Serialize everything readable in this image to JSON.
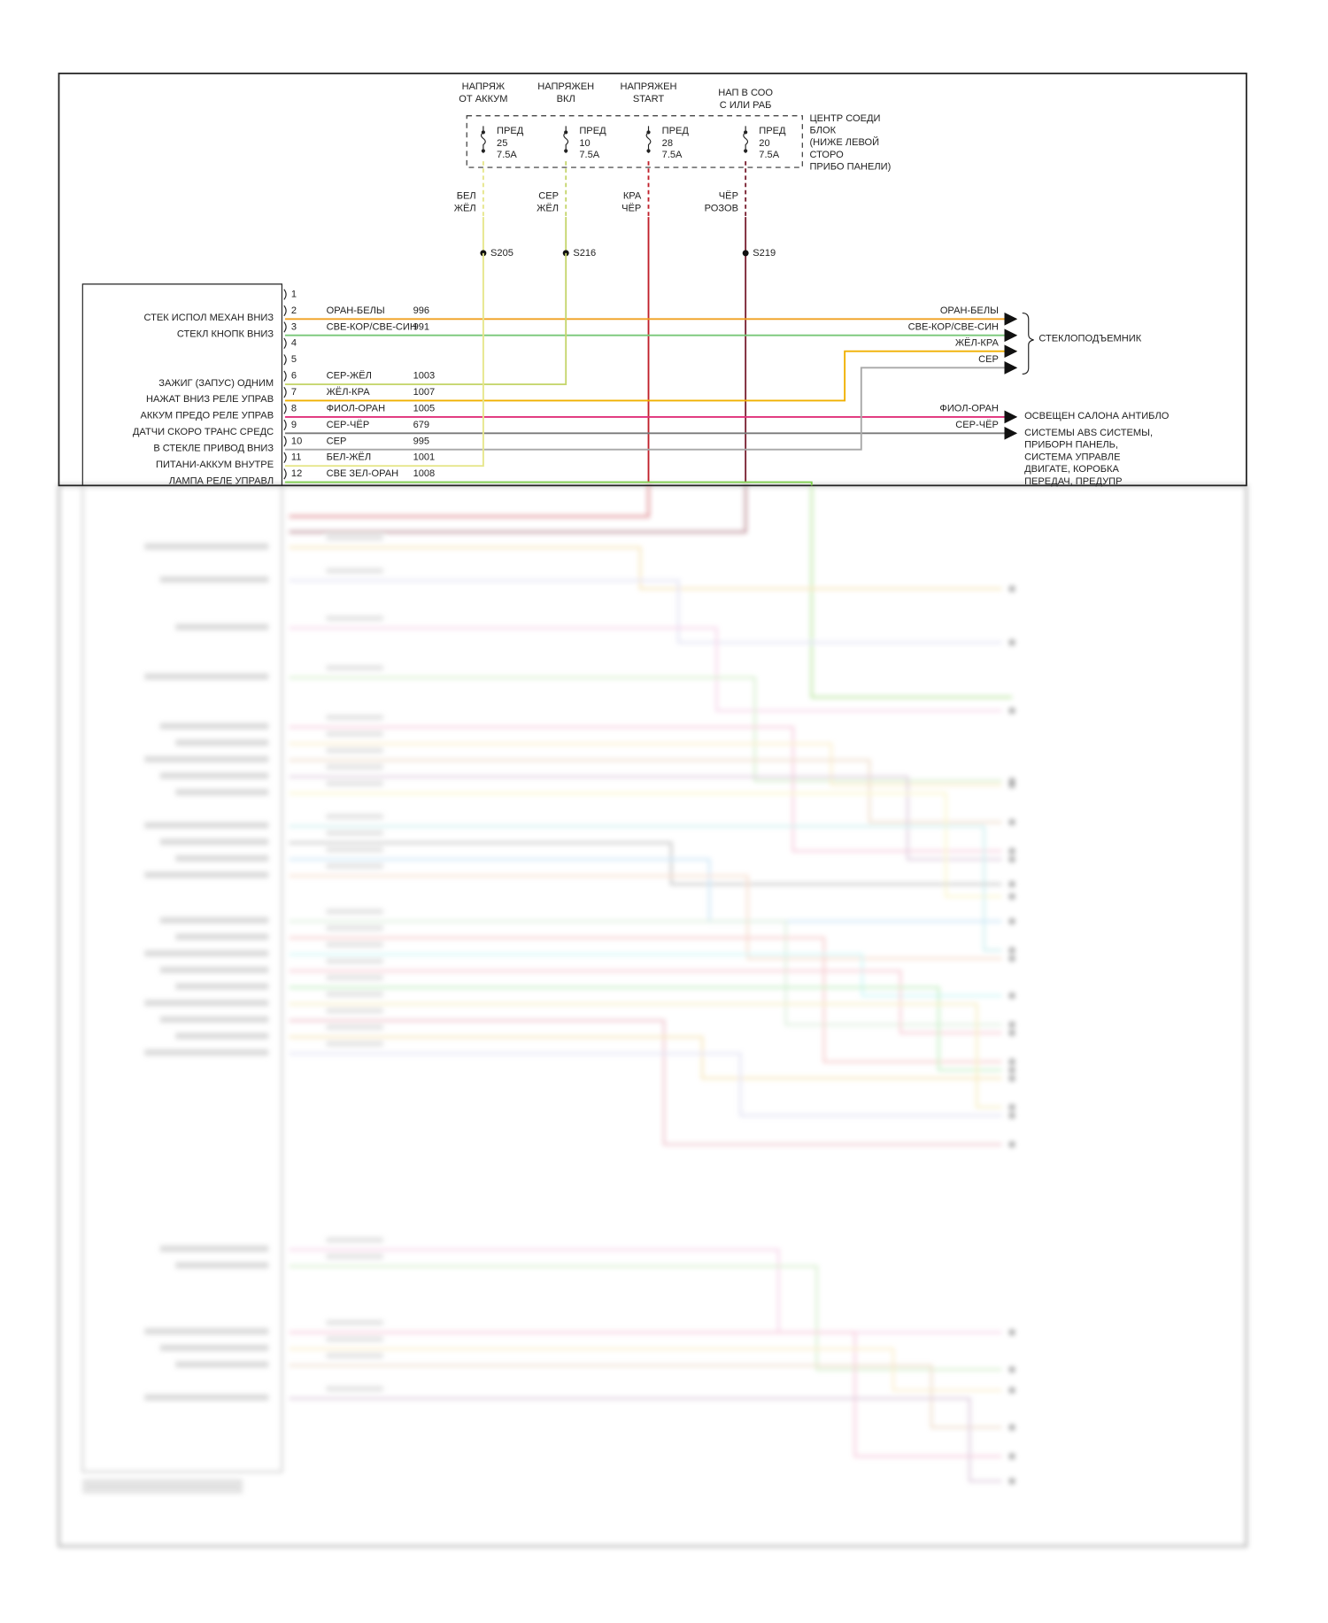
{
  "fuse_block": {
    "label": [
      "ЦЕНТР СОЕДИ",
      "БЛОК",
      "(НИЖЕ ЛЕВОЙ",
      "СТОРО",
      "ПРИБО ПАНЕЛИ)"
    ],
    "fuses": [
      {
        "source": [
          "НАПРЯЖ",
          "ОТ АККУМ"
        ],
        "name": "ПРЕД",
        "number": 25,
        "rating": "7.5A",
        "wire_color": [
          "БЕЛ",
          "ЖЁЛ"
        ],
        "splice": "S205",
        "color": "#e6e68a"
      },
      {
        "source": [
          "НАПРЯЖЕН",
          "ВКЛ"
        ],
        "name": "ПРЕД",
        "number": 10,
        "rating": "7.5A",
        "wire_color": [
          "СЕР",
          "ЖЁЛ"
        ],
        "splice": "S216",
        "color": "#c6d66e"
      },
      {
        "source": [
          "НАПРЯЖЕН",
          "START"
        ],
        "name": "ПРЕД",
        "number": 28,
        "rating": "7.5A",
        "wire_color": [
          "КРА",
          "ЧЁР"
        ],
        "color": "#c0202a"
      },
      {
        "source": [
          "НАП В СОО",
          "С ИЛИ РАБ"
        ],
        "name": "ПРЕД",
        "number": 20,
        "rating": "7.5A",
        "wire_color": [
          "ЧЁР",
          "РОЗОВ"
        ],
        "splice": "S219",
        "color": "#7a2232"
      }
    ]
  },
  "connector": {
    "pins": [
      {
        "pin": 1
      },
      {
        "pin": 2,
        "function": "СТЕК ИСПОЛ МЕХАН ВНИЗ",
        "wire": "ОРАН-БЕЛЫ",
        "circuit": 996,
        "color": "#f0a020",
        "dest_label": "ОРАН-БЕЛЫ"
      },
      {
        "pin": 3,
        "function": "СТЕКЛ КНОПК ВНИЗ",
        "wire": "СВЕ-КОР/СВЕ-СИН",
        "circuit": 991,
        "color": "#78c878",
        "dest_label": "СВЕ-КОР/СВЕ-СИН"
      },
      {
        "pin": 4
      },
      {
        "pin": 5
      },
      {
        "pin": 6,
        "function": "ЗАЖИГ (ЗАПУС) ОДНИМ",
        "wire": "СЕР-ЖЁЛ",
        "circuit": 1003,
        "color": "#c6d66e"
      },
      {
        "pin": 7,
        "function": "НАЖАТ ВНИЗ РЕЛЕ УПРАВ",
        "wire": "ЖЁЛ-КРА",
        "circuit": 1007,
        "color": "#f0b000",
        "dest_label": "ЖЁЛ-КРА"
      },
      {
        "pin": 8,
        "function": "АККУМ ПРЕДО РЕЛЕ УПРАВ",
        "wire": "ФИОЛ-ОРАН",
        "circuit": 1005,
        "color": "#e0307a",
        "dest_label": "ФИОЛ-ОРАН"
      },
      {
        "pin": 9,
        "function": "ДАТЧИ СКОРО ТРАНС СРЕДС",
        "wire": "СЕР-ЧЁР",
        "circuit": 679,
        "color": "#7a7a7a",
        "dest_label": "СЕР-ЧЁР"
      },
      {
        "pin": 10,
        "function": "В СТЕКЛЕ ПРИВОД ВНИЗ",
        "wire": "СЕР",
        "circuit": 995,
        "color": "#a8a8a8",
        "dest_label": "СЕР"
      },
      {
        "pin": 11,
        "function": "ПИТАНИ-АККУМ ВНУТРЕ",
        "wire": "БЕЛ-ЖЁЛ",
        "circuit": 1001,
        "color": "#e6e68a"
      },
      {
        "pin": 12,
        "function": "ЛАМПА РЕЛЕ УПРАВЛ",
        "wire": "СВЕ ЗЕЛ-ОРАН",
        "circuit": 1008,
        "color": "#80d050"
      }
    ]
  },
  "destinations": {
    "window_lift": "СТЕКЛОПОДЪЕМНИК",
    "interior_lighting": "ОСВЕЩЕН САЛОНА АНТИБЛО",
    "systems": [
      "СИСТЕМЫ ABS СИСТЕМЫ,",
      "ПРИБОРН ПАНЕЛЬ,",
      "СИСТЕМА УПРАВЛЕ",
      "ДВИГАТЕ, КОРОБКА",
      "ПЕРЕДАЧ, ПРЕДУПР"
    ]
  }
}
